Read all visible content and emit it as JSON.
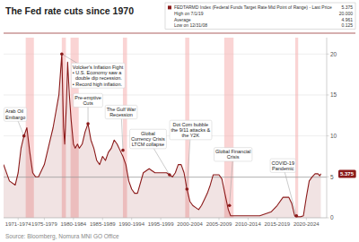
{
  "chart_data": {
    "type": "line",
    "title": "The Fed rate cuts since 1970",
    "source": "Source: Bloomberg, Nomura MNI GO Office",
    "x": [
      1970,
      1971,
      1972,
      1972.5,
      1973,
      1973.5,
      1974,
      1974.5,
      1975,
      1975.5,
      1976,
      1977,
      1978,
      1978.5,
      1979,
      1979.5,
      1980,
      1980.3,
      1980.5,
      1980.8,
      1981,
      1981.3,
      1981.6,
      1982,
      1982.3,
      1982.7,
      1983,
      1983.5,
      1984,
      1984.5,
      1985,
      1985.5,
      1986,
      1986.5,
      1987,
      1987.5,
      1988,
      1988.5,
      1989,
      1989.5,
      1990,
      1990.5,
      1991,
      1991.5,
      1992,
      1992.5,
      1993,
      1994,
      1994.5,
      1995,
      1995.5,
      1996,
      1997,
      1997.5,
      1998,
      1998.5,
      1999,
      1999.5,
      2000,
      2000.5,
      2001,
      2001.5,
      2002,
      2002.5,
      2003,
      2003.5,
      2004,
      2004.5,
      2005,
      2005.5,
      2006,
      2006.5,
      2007,
      2007.5,
      2008,
      2008.3,
      2008.6,
      2009,
      2010,
      2011,
      2012,
      2013,
      2014,
      2015,
      2016,
      2017,
      2018,
      2019,
      2019.5,
      2020,
      2020.2,
      2020.4,
      2021,
      2021.5,
      2022,
      2022.5,
      2023,
      2023.5,
      2024,
      2024.3,
      2024.5
    ],
    "series": [
      {
        "name": "FEDTARMD Index (Federal Funds Target Rate Mid Point of Range) - Last Price",
        "color": "#8B1A1A",
        "values": [
          6.5,
          4.5,
          4.0,
          5.5,
          8.5,
          10.0,
          11.0,
          8.0,
          5.5,
          5.0,
          5.0,
          6.5,
          9.5,
          11.0,
          13.0,
          15.0,
          20.0,
          11.0,
          9.0,
          14.0,
          19.0,
          15.0,
          12.0,
          9.0,
          8.5,
          9.0,
          8.5,
          9.0,
          10.5,
          11.5,
          9.5,
          8.5,
          7.0,
          6.5,
          7.5,
          7.0,
          8.0,
          8.5,
          9.5,
          9.0,
          8.25,
          7.5,
          6.5,
          4.5,
          3.5,
          3.0,
          3.0,
          5.5,
          5.75,
          6.0,
          5.75,
          5.5,
          5.5,
          5.5,
          5.5,
          5.25,
          5.0,
          5.5,
          6.5,
          6.5,
          5.5,
          3.5,
          2.0,
          1.5,
          1.25,
          1.0,
          1.5,
          2.25,
          3.0,
          4.0,
          5.25,
          5.25,
          5.25,
          4.75,
          3.0,
          2.0,
          1.0,
          0.25,
          0.25,
          0.25,
          0.25,
          0.25,
          0.25,
          0.5,
          0.75,
          1.5,
          2.5,
          2.5,
          1.75,
          0.25,
          0.125,
          0.125,
          0.125,
          0.25,
          2.5,
          4.5,
          5.0,
          5.375,
          5.375,
          5.125,
          5.375
        ]
      }
    ],
    "xlim": [
      1970,
      2025.5
    ],
    "xticks": [
      {
        "value": 1972.5,
        "label": "1971-1974"
      },
      {
        "value": 1977.0,
        "label": "1975-1979"
      },
      {
        "value": 1982.0,
        "label": "1980-1984"
      },
      {
        "value": 1987.0,
        "label": "1985-1989"
      },
      {
        "value": 1992.0,
        "label": "1990-1994"
      },
      {
        "value": 1997.0,
        "label": "1995-1999"
      },
      {
        "value": 2002.0,
        "label": "2000-2004"
      },
      {
        "value": 2007.0,
        "label": "2005-2009"
      },
      {
        "value": 2012.0,
        "label": "2010-2014"
      },
      {
        "value": 2017.0,
        "label": "2015-2019"
      },
      {
        "value": 2022.0,
        "label": "2020-2024"
      }
    ],
    "ylim": [
      0,
      22
    ],
    "yticks": [
      0,
      5,
      10,
      15,
      20
    ],
    "grid": true,
    "legend": "top right",
    "recession_shades": [
      [
        1973.8,
        1975.2
      ],
      [
        1980.0,
        1980.7
      ],
      [
        1981.5,
        1982.9
      ],
      [
        1990.5,
        1991.2
      ],
      [
        2001.2,
        2001.9
      ],
      [
        2007.9,
        2009.5
      ],
      [
        2020.1,
        2020.6
      ]
    ],
    "average_line": 4.961,
    "last_price": {
      "value": 5.375,
      "label": "5.375"
    },
    "legend_stats": [
      {
        "label": "High on 7/1/19",
        "value_label": "20.000"
      },
      {
        "label": "Average",
        "value": 4.961
      },
      {
        "label": "Low on 12/31/08",
        "value": 0.125
      }
    ],
    "annotations": [
      {
        "text": "Arab Oil\nEmbargo",
        "x": 1973.5,
        "y": 10.0
      },
      {
        "text": "Volcker's Inflation Fight\n• U.S. Economy saw a\n  double dip recession.\n• Record high inflation.",
        "x": 1980.0,
        "y": 20.0
      },
      {
        "text": "Pre-emptive\nCuts",
        "x": 1984.5,
        "y": 11.5
      },
      {
        "text": "The Gulf War\nRecession",
        "x": 1990.5,
        "y": 8.25
      },
      {
        "text": "Global\nCurrency Crisis\nLTCM collapse",
        "x": 1998.5,
        "y": 5.25
      },
      {
        "text": "Dot Com bubble\nthe 9/11 attacks &\nthe Y2K",
        "x": 2001.5,
        "y": 3.5
      },
      {
        "text": "Global Financial\nCrisis",
        "x": 2008.8,
        "y": 1.5
      },
      {
        "text": "COVID-19\nPandemic",
        "x": 2020.3,
        "y": 0.25
      }
    ]
  }
}
